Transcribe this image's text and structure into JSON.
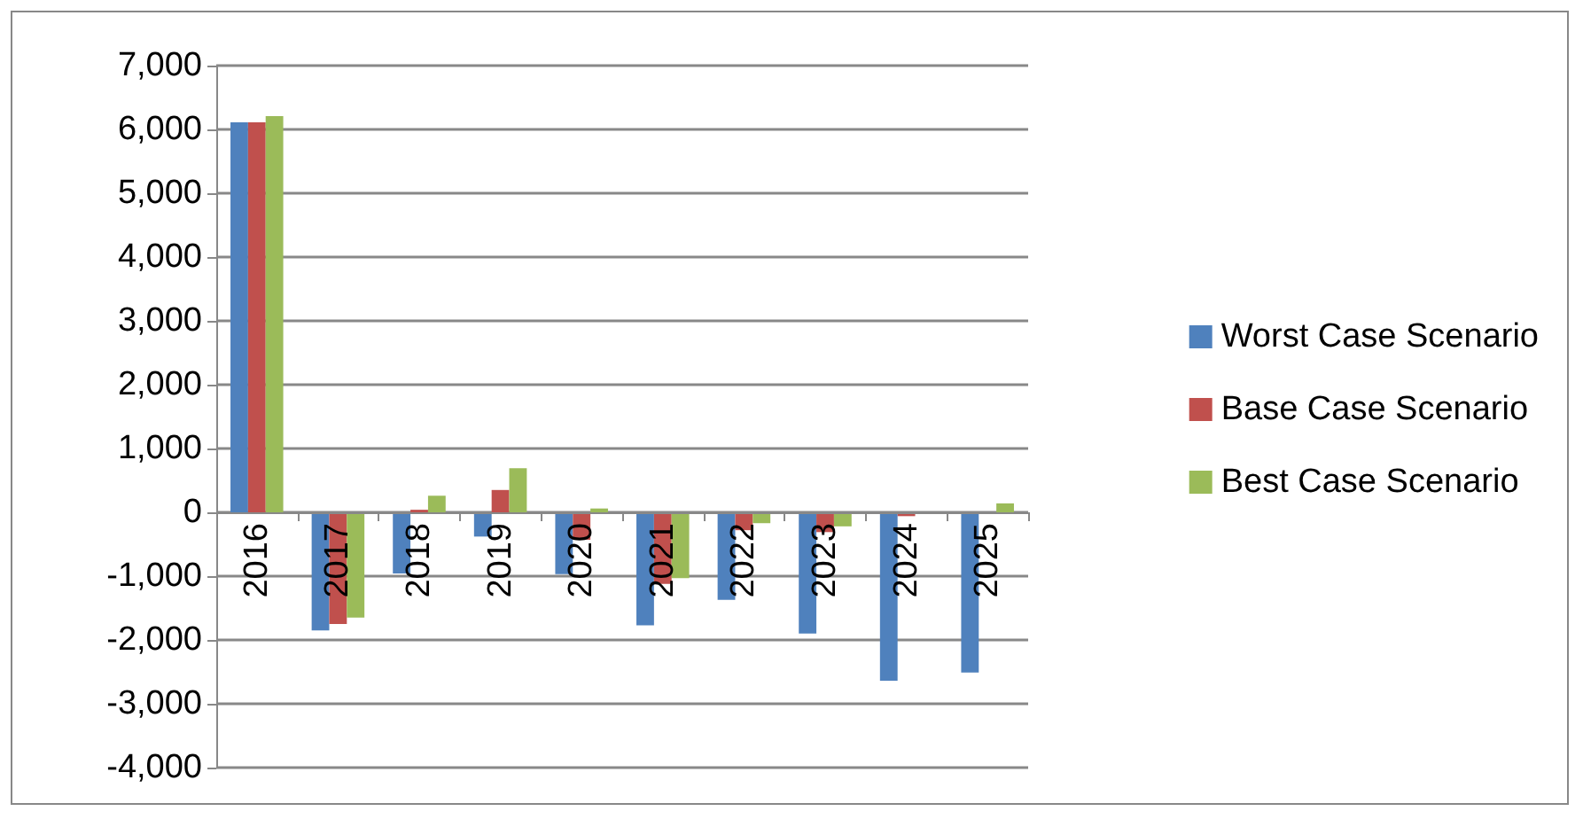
{
  "chart_data": {
    "type": "bar",
    "categories": [
      "2016",
      "2017",
      "2018",
      "2019",
      "2020",
      "2021",
      "2022",
      "2023",
      "2024",
      "2025"
    ],
    "series": [
      {
        "name": "Worst Case Scenario",
        "color": "#4f81bd",
        "values": [
          6110,
          -1850,
          -960,
          -380,
          -970,
          -1770,
          -1370,
          -1900,
          -2640,
          -2510
        ]
      },
      {
        "name": "Base Case Scenario",
        "color": "#c0504d",
        "values": [
          6110,
          -1750,
          40,
          350,
          -430,
          -1120,
          -280,
          -310,
          -60,
          0
        ]
      },
      {
        "name": "Best Case Scenario",
        "color": "#9bbb59",
        "values": [
          6210,
          -1650,
          260,
          690,
          60,
          -1030,
          -170,
          -220,
          0,
          140
        ]
      }
    ],
    "ylim": [
      -4000,
      7000
    ],
    "yticks": [
      {
        "value": -4000,
        "label": "-4,000"
      },
      {
        "value": -3000,
        "label": "-3,000"
      },
      {
        "value": -2000,
        "label": "-2,000"
      },
      {
        "value": -1000,
        "label": "-1,000"
      },
      0,
      {
        "value": 1000,
        "label": "1,000"
      },
      {
        "value": 2000,
        "label": "2,000"
      },
      {
        "value": 3000,
        "label": "3,000"
      },
      {
        "value": 4000,
        "label": "4,000"
      },
      {
        "value": 5000,
        "label": "5,000"
      },
      {
        "value": 6000,
        "label": "6,000"
      },
      {
        "value": 7000,
        "label": "7,000"
      }
    ],
    "grid": "y",
    "legend": "right"
  }
}
